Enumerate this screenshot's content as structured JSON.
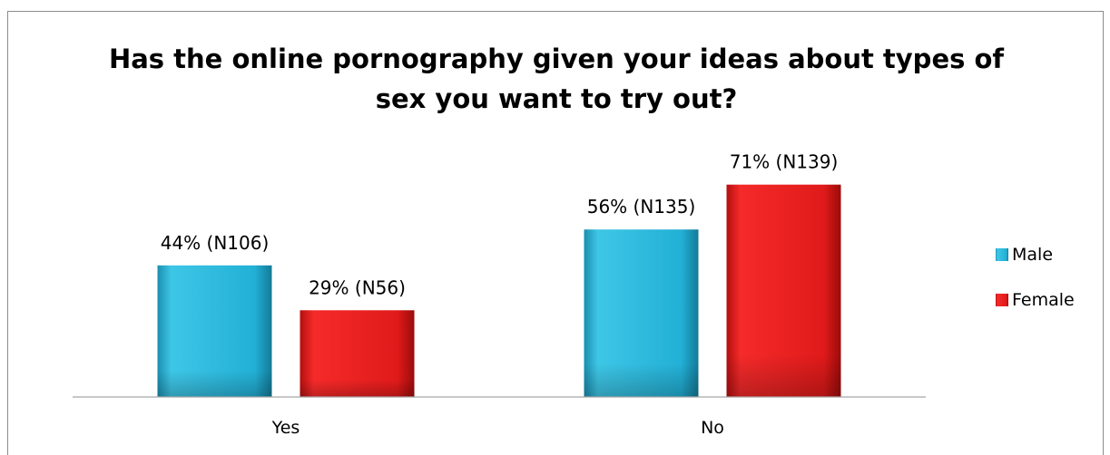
{
  "chart_data": {
    "type": "bar",
    "title": "Has the online pornography given your ideas about types of\nsex you want to try out?",
    "categories": [
      "Yes",
      "No"
    ],
    "series": [
      {
        "name": "Male",
        "color": "#2bb8d9",
        "values": [
          44,
          56
        ],
        "labels": [
          "44% (N106)",
          "56% (N135)"
        ]
      },
      {
        "name": "Female",
        "color": "#e81c1c",
        "values": [
          29,
          71
        ],
        "labels": [
          "29% (N56)",
          "71% (N139)"
        ]
      }
    ],
    "value_unit": "%",
    "legend_position": "right",
    "grid": false
  }
}
